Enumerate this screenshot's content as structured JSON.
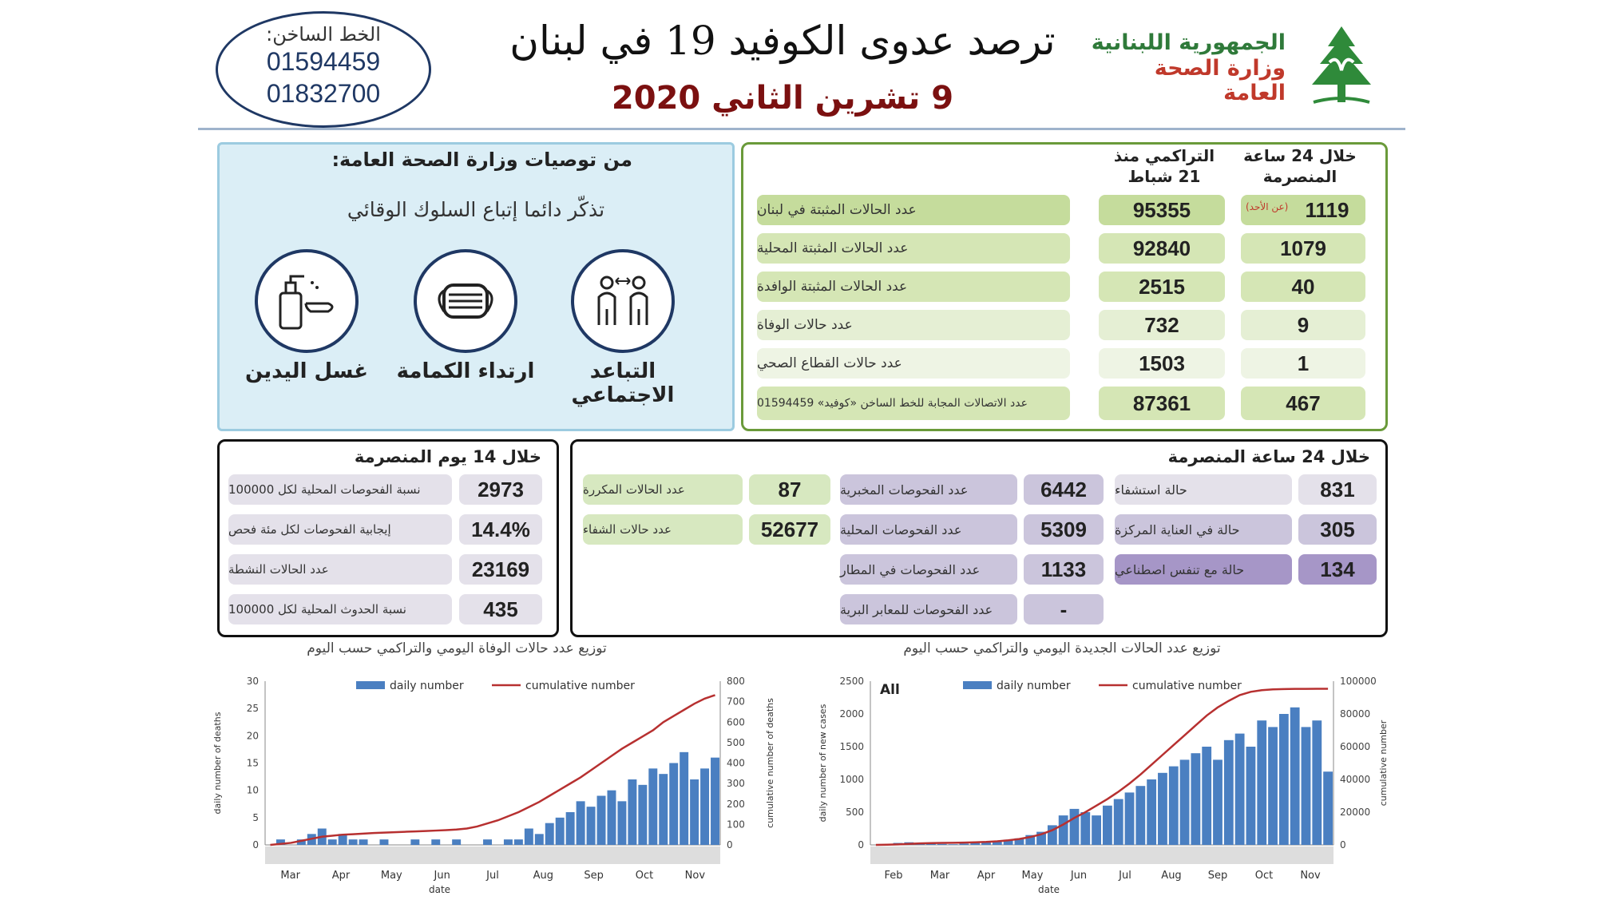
{
  "header": {
    "hotline_title": "الخط الساخن:",
    "hotline_1": "01594459",
    "hotline_2": "01832700",
    "title": "ترصد عدوى الكوفيد 19 في لبنان",
    "date": "9 تشرين الثاني 2020",
    "republic": "الجمهورية اللبنانية",
    "ministry": "وزارة الصحة العامة"
  },
  "recommendations": {
    "title": "من توصيات وزارة الصحة العامة:",
    "subtitle": "تذكّر دائما إتباع السلوك الوقائي",
    "items": [
      {
        "label": "التباعد الاجتماعي",
        "icon": "social-distance-icon"
      },
      {
        "label": "ارتداء الكمامة",
        "icon": "mask-icon"
      },
      {
        "label": "غسل اليدين",
        "icon": "hand-wash-icon"
      }
    ]
  },
  "stats": {
    "col_24h": "خلال 24 ساعة المنصرمة",
    "col_cum": "التراكمي منذ 21 شباط",
    "rows": [
      {
        "label": "عدد الحالات المثبتة في لبنان",
        "cum": "95355",
        "daily": "1119",
        "note": "(عن الأحد)"
      },
      {
        "label": "عدد الحالات المثبتة المحلية",
        "cum": "92840",
        "daily": "1079"
      },
      {
        "label": "عدد الحالات المثبتة الوافدة",
        "cum": "2515",
        "daily": "40"
      },
      {
        "label": "عدد حالات الوفاة",
        "cum": "732",
        "daily": "9"
      },
      {
        "label": "عدد حالات القطاع الصحي",
        "cum": "1503",
        "daily": "1"
      },
      {
        "label": "عدد الاتصالات المجابة للخط الساخن «كوفيد» 01594459",
        "cum": "87361",
        "daily": "467"
      }
    ]
  },
  "box14": {
    "title": "خلال 14 يوم المنصرمة",
    "rows": [
      {
        "value": "2973",
        "label": "نسبة الفحوصات المحلية لكل 100000"
      },
      {
        "value": "14.4%",
        "label": "إيجابية الفحوصات لكل مئة فحص"
      },
      {
        "value": "23169",
        "label": "عدد الحالات النشطة"
      },
      {
        "value": "435",
        "label": "نسبة الحدوث المحلية لكل 100000"
      }
    ]
  },
  "box24": {
    "title": "خلال 24 ساعة المنصرمة",
    "hospital": [
      {
        "value": "831",
        "label": "حالة استشفاء"
      },
      {
        "value": "305",
        "label": "حالة في العناية المركزة"
      },
      {
        "value": "134",
        "label": "حالة مع تنفس اصطناعي"
      }
    ],
    "tests": [
      {
        "value": "6442",
        "label": "عدد الفحوصات المخبرية"
      },
      {
        "value": "5309",
        "label": "عدد الفحوصات المحلية"
      },
      {
        "value": "1133",
        "label": "عدد الفحوصات في المطار"
      },
      {
        "value": "-",
        "label": "عدد الفحوصات للمعابر البرية"
      }
    ],
    "other": [
      {
        "value": "87",
        "label": "عدد الحالات المكررة"
      },
      {
        "value": "52677",
        "label": "عدد حالات الشفاء"
      }
    ]
  },
  "chart_data": [
    {
      "type": "bar",
      "title": "توزيع عدد حالات الوفاة اليومي والتراكمي حسب اليوم",
      "xlabel": "date",
      "ylabel": "daily number of deaths",
      "y2label": "cumulative number of deaths",
      "ylim": [
        0,
        30
      ],
      "y2lim": [
        0,
        800
      ],
      "yticks": [
        "30",
        "25",
        "20",
        "15",
        "10",
        "5",
        "0"
      ],
      "y2ticks": [
        "800",
        "700",
        "600",
        "500",
        "400",
        "300",
        "200",
        "100",
        "0"
      ],
      "months": [
        "Mar",
        "Apr",
        "May",
        "Jun",
        "Jul",
        "Aug",
        "Sep",
        "Oct",
        "Nov"
      ],
      "legend": {
        "daily": "daily number",
        "cumulative": "cumulative number",
        "position": "top"
      },
      "series": [
        {
          "name": "daily number",
          "values": [
            0,
            1,
            0,
            1,
            2,
            3,
            1,
            2,
            1,
            1,
            0,
            1,
            0,
            0,
            1,
            0,
            1,
            0,
            1,
            0,
            0,
            1,
            0,
            1,
            1,
            3,
            2,
            4,
            5,
            6,
            8,
            7,
            9,
            10,
            8,
            12,
            11,
            14,
            13,
            15,
            17,
            12,
            14,
            16
          ]
        },
        {
          "name": "cumulative number",
          "values": [
            0,
            5,
            10,
            20,
            30,
            40,
            45,
            50,
            52,
            55,
            58,
            60,
            62,
            64,
            66,
            68,
            70,
            72,
            75,
            80,
            90,
            105,
            120,
            140,
            160,
            185,
            210,
            240,
            270,
            300,
            330,
            365,
            400,
            435,
            470,
            500,
            530,
            560,
            600,
            630,
            660,
            690,
            715,
            732
          ]
        }
      ]
    },
    {
      "type": "bar",
      "title": "توزيع عدد الحالات الجديدة اليومي والتراكمي حسب اليوم",
      "xlabel": "date",
      "ylabel": "daily number of new cases",
      "y2label": "cumulative number",
      "ylim": [
        0,
        2500
      ],
      "y2lim": [
        0,
        100000
      ],
      "yticks": [
        "2500",
        "2000",
        "1500",
        "1000",
        "500",
        "0"
      ],
      "y2ticks": [
        "100000",
        "80000",
        "60000",
        "40000",
        "20000",
        "0"
      ],
      "months": [
        "Feb",
        "Mar",
        "Apr",
        "May",
        "Jun",
        "Jul",
        "Aug",
        "Sep",
        "Oct",
        "Nov"
      ],
      "annotation": "All",
      "legend": {
        "daily": "daily number",
        "cumulative": "cumulative number",
        "position": "top"
      },
      "series": [
        {
          "name": "daily number",
          "values": [
            0,
            10,
            30,
            40,
            30,
            20,
            15,
            10,
            20,
            30,
            40,
            60,
            80,
            100,
            150,
            200,
            300,
            450,
            550,
            500,
            450,
            600,
            700,
            800,
            900,
            1000,
            1100,
            1200,
            1300,
            1400,
            1500,
            1300,
            1600,
            1700,
            1500,
            1900,
            1800,
            2000,
            2100,
            1800,
            1900,
            1119
          ]
        },
        {
          "name": "cumulative number",
          "values": [
            0,
            100,
            300,
            600,
            900,
            1100,
            1200,
            1300,
            1400,
            1600,
            1800,
            2200,
            2800,
            3600,
            4800,
            6500,
            9000,
            12500,
            16500,
            20000,
            24000,
            28000,
            32500,
            37500,
            43000,
            49000,
            55000,
            61000,
            67000,
            73000,
            79000,
            84000,
            88000,
            91500,
            93500,
            94500,
            95000,
            95200,
            95300,
            95320,
            95340,
            95355
          ]
        }
      ]
    }
  ]
}
